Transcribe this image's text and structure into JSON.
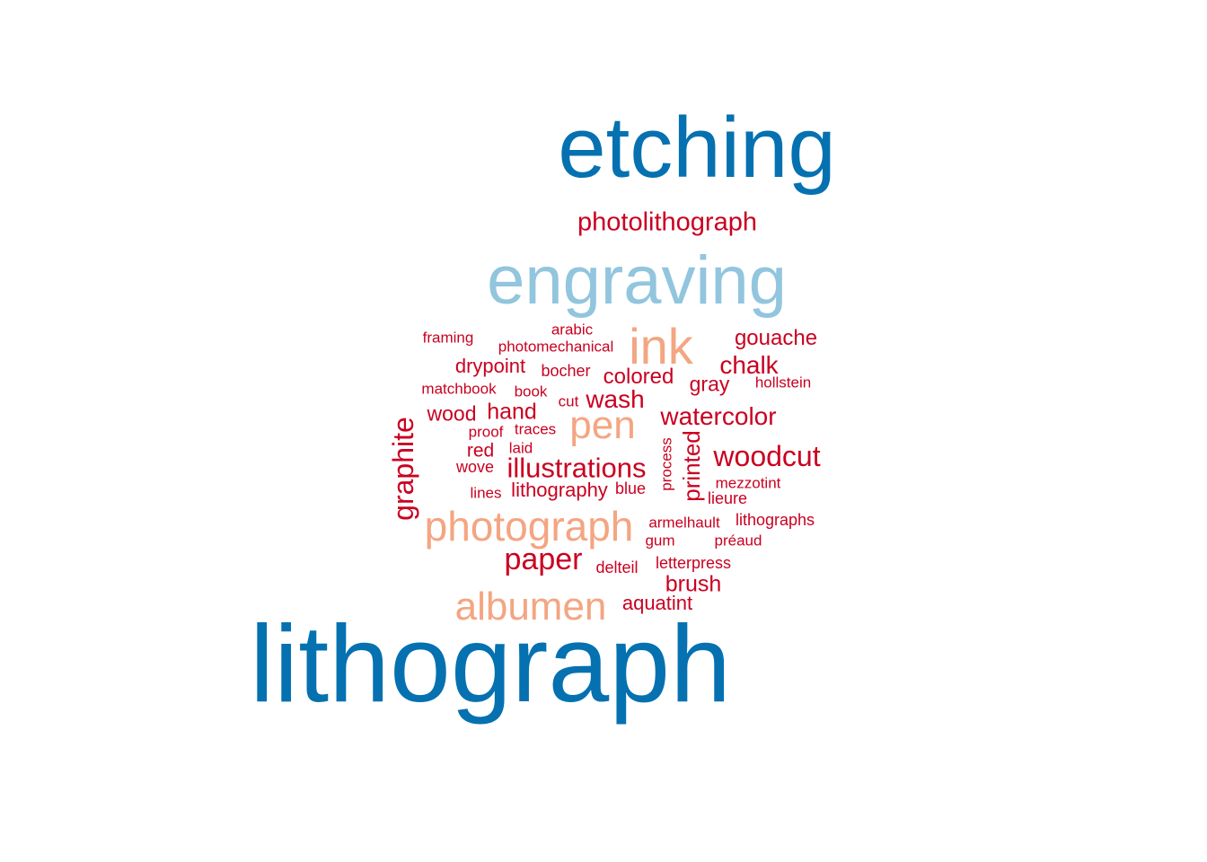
{
  "colors": {
    "dark_blue": "#0571b0",
    "light_blue": "#92c5de",
    "salmon": "#f4a582",
    "red": "#ca0020",
    "background": "#ffffff"
  },
  "words": {
    "etching": "etching",
    "photolithograph": "photolithograph",
    "engraving": "engraving",
    "framing": "framing",
    "arabic": "arabic",
    "photomechanical": "photomechanical",
    "ink": "ink",
    "gouache": "gouache",
    "drypoint": "drypoint",
    "bocher": "bocher",
    "chalk": "chalk",
    "colored": "colored",
    "matchbook": "matchbook",
    "book": "book",
    "gray": "gray",
    "hollstein": "hollstein",
    "cut": "cut",
    "wash": "wash",
    "graphite": "graphite",
    "wood": "wood",
    "hand": "hand",
    "pen": "pen",
    "watercolor": "watercolor",
    "proof": "proof",
    "traces": "traces",
    "printed": "printed",
    "process": "process",
    "red": "red",
    "laid": "laid",
    "woodcut": "woodcut",
    "wove": "wove",
    "illustrations": "illustrations",
    "mezzotint": "mezzotint",
    "lines": "lines",
    "lithography": "lithography",
    "blue": "blue",
    "lieure": "lieure",
    "photograph": "photograph",
    "armelhault": "armelhault",
    "lithographs": "lithographs",
    "gum": "gum",
    "preaud": "préaud",
    "paper": "paper",
    "delteil": "delteil",
    "letterpress": "letterpress",
    "brush": "brush",
    "albumen": "albumen",
    "aquatint": "aquatint",
    "lithograph": "lithograph"
  }
}
